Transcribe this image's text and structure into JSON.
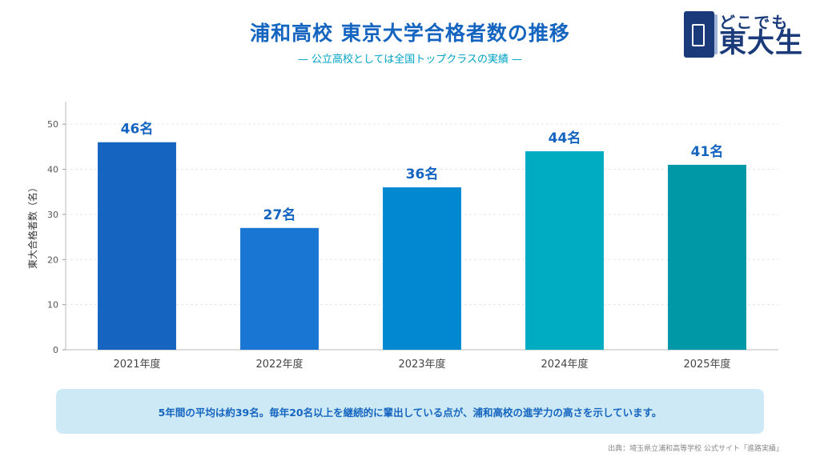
{
  "header": {
    "title": "浦和高校 東京大学合格者数の推移",
    "subtitle": "— 公立高校としては全国トップクラスの実績 —"
  },
  "logo": {
    "line1": "どこでも",
    "line2": "東大生",
    "icon": "book-door-icon"
  },
  "chart_data": {
    "type": "bar",
    "categories": [
      "2021年度",
      "2022年度",
      "2023年度",
      "2024年度",
      "2025年度"
    ],
    "values": [
      46,
      27,
      36,
      44,
      41
    ],
    "data_labels": [
      "46名",
      "27名",
      "36名",
      "44名",
      "41名"
    ],
    "ylabel": "東大合格者数（名）",
    "xlabel": "",
    "ylim": [
      0,
      55
    ],
    "yticks": [
      0,
      10,
      20,
      30,
      40,
      50
    ],
    "grid": true,
    "colors": [
      "#1565c0",
      "#1976d2",
      "#0288d1",
      "#00acc1",
      "#0097a7"
    ],
    "label_color": "#1565c0"
  },
  "footer": {
    "note": "5年間の平均は約39名。毎年20名以上を継続的に輩出している点が、浦和高校の進学力の高さを示しています。",
    "source": "出典：埼玉県立浦和高等学校 公式サイト「進路実績」"
  }
}
